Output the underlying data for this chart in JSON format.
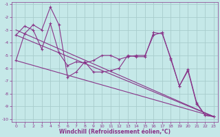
{
  "xlabel": "Windchill (Refroidissement éolien,°C)",
  "background_color": "#c5e8e8",
  "grid_color": "#a8cccc",
  "line_color": "#883388",
  "xlim": [
    -0.5,
    23.5
  ],
  "ylim": [
    -10.2,
    -0.8
  ],
  "yticks": [
    -10,
    -9,
    -8,
    -7,
    -6,
    -5,
    -4,
    -3,
    -2,
    -1
  ],
  "xticks": [
    0,
    1,
    2,
    3,
    4,
    5,
    6,
    7,
    8,
    9,
    10,
    11,
    12,
    13,
    14,
    15,
    16,
    17,
    18,
    19,
    20,
    21,
    22,
    23
  ],
  "series1_x": [
    0,
    1,
    2,
    3,
    4,
    5,
    6,
    7,
    8,
    9,
    10,
    11,
    12,
    13,
    14,
    15,
    16,
    17,
    18,
    19,
    20,
    21,
    22,
    23
  ],
  "series1_y": [
    -5.4,
    -3.3,
    -2.6,
    -3.0,
    -1.2,
    -2.6,
    -6.7,
    -6.3,
    -5.5,
    -6.3,
    -6.3,
    -6.2,
    -6.0,
    -5.0,
    -5.1,
    -5.1,
    -3.2,
    -3.3,
    -5.2,
    -7.4,
    -6.1,
    -8.7,
    -9.7,
    -9.8
  ],
  "series2_x": [
    0,
    1,
    2,
    3,
    4,
    5,
    6,
    7,
    8,
    9,
    10,
    11,
    12,
    13,
    14,
    15,
    16,
    17,
    18,
    19,
    20,
    21,
    22,
    23
  ],
  "series2_y": [
    -3.4,
    -2.7,
    -3.0,
    -4.5,
    -2.5,
    -4.8,
    -5.8,
    -5.5,
    -5.6,
    -5.4,
    -5.0,
    -5.0,
    -5.3,
    -5.1,
    -5.0,
    -5.0,
    -3.4,
    -3.2,
    -5.3,
    -7.4,
    -6.2,
    -8.8,
    -9.7,
    -9.8
  ],
  "trend1_x": [
    0,
    23
  ],
  "trend1_y": [
    -3.4,
    -9.8
  ],
  "trend2_x": [
    0,
    23
  ],
  "trend2_y": [
    -3.0,
    -9.8
  ],
  "trend3_x": [
    0,
    23
  ],
  "trend3_y": [
    -5.4,
    -9.8
  ]
}
